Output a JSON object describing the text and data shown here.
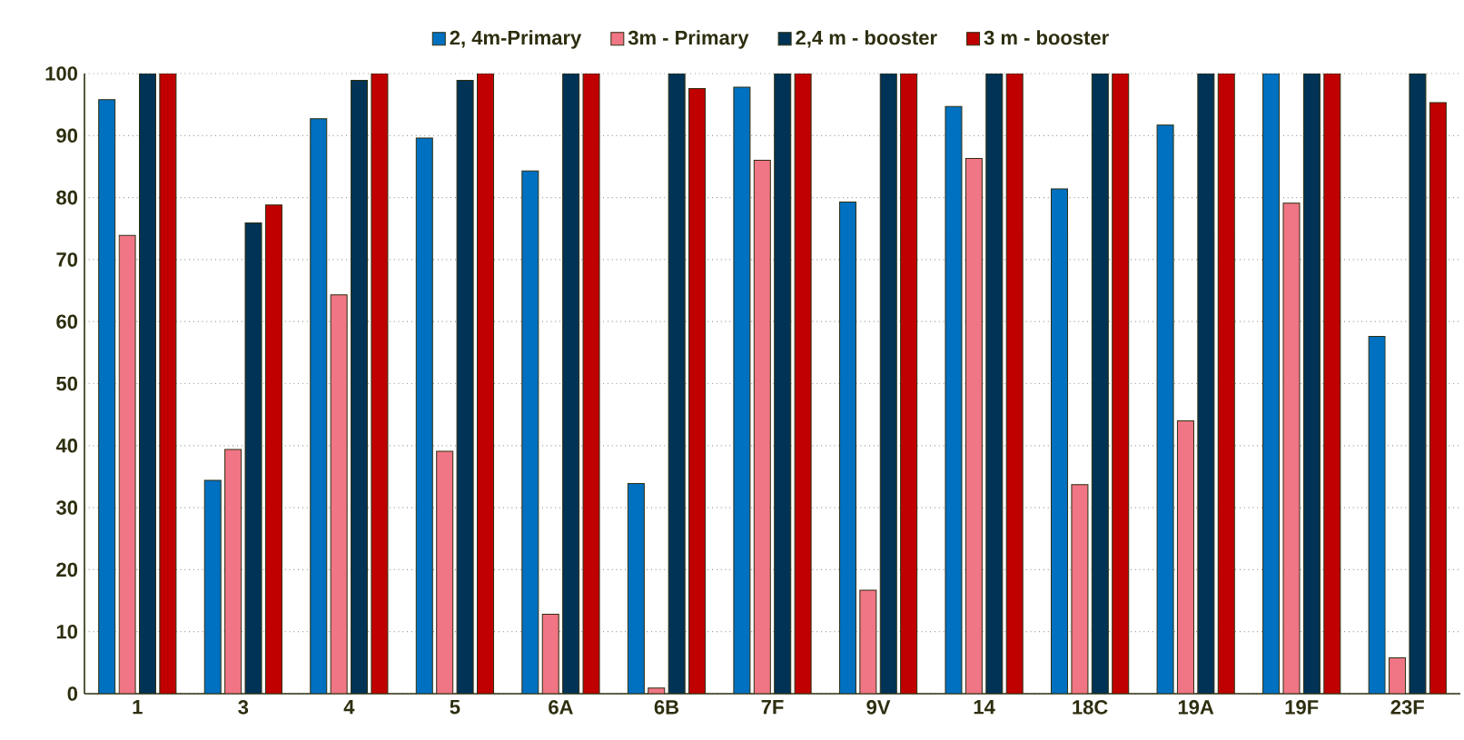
{
  "chart_data": {
    "type": "bar",
    "categories": [
      "1",
      "3",
      "4",
      "5",
      "6A",
      "6B",
      "7F",
      "9V",
      "14",
      "18C",
      "19A",
      "19F",
      "23F"
    ],
    "series": [
      {
        "name": "2, 4m-Primary",
        "color": "#0070c0",
        "values": [
          95.8,
          34.4,
          92.7,
          89.6,
          84.3,
          33.9,
          97.8,
          79.3,
          94.7,
          81.4,
          91.7,
          100,
          57.6
        ]
      },
      {
        "name": "3m - Primary",
        "color": "#f07585",
        "values": [
          73.9,
          39.4,
          64.3,
          39.1,
          12.8,
          0.9,
          86,
          16.7,
          86.3,
          33.7,
          44,
          79.1,
          5.8
        ]
      },
      {
        "name": "2,4 m - booster",
        "color": "#003355",
        "values": [
          100,
          75.9,
          98.9,
          98.9,
          100,
          100,
          100,
          100,
          100,
          100,
          100,
          100,
          100
        ]
      },
      {
        "name": "3 m - booster",
        "color": "#c00000",
        "values": [
          100,
          78.8,
          100,
          100,
          100,
          97.6,
          100,
          100,
          100,
          100,
          100,
          100,
          95.3
        ]
      }
    ],
    "ylim": [
      0,
      100
    ],
    "yticks": [
      0,
      10,
      20,
      30,
      40,
      50,
      60,
      70,
      80,
      90,
      100
    ],
    "grid": "y",
    "legend": "top"
  }
}
